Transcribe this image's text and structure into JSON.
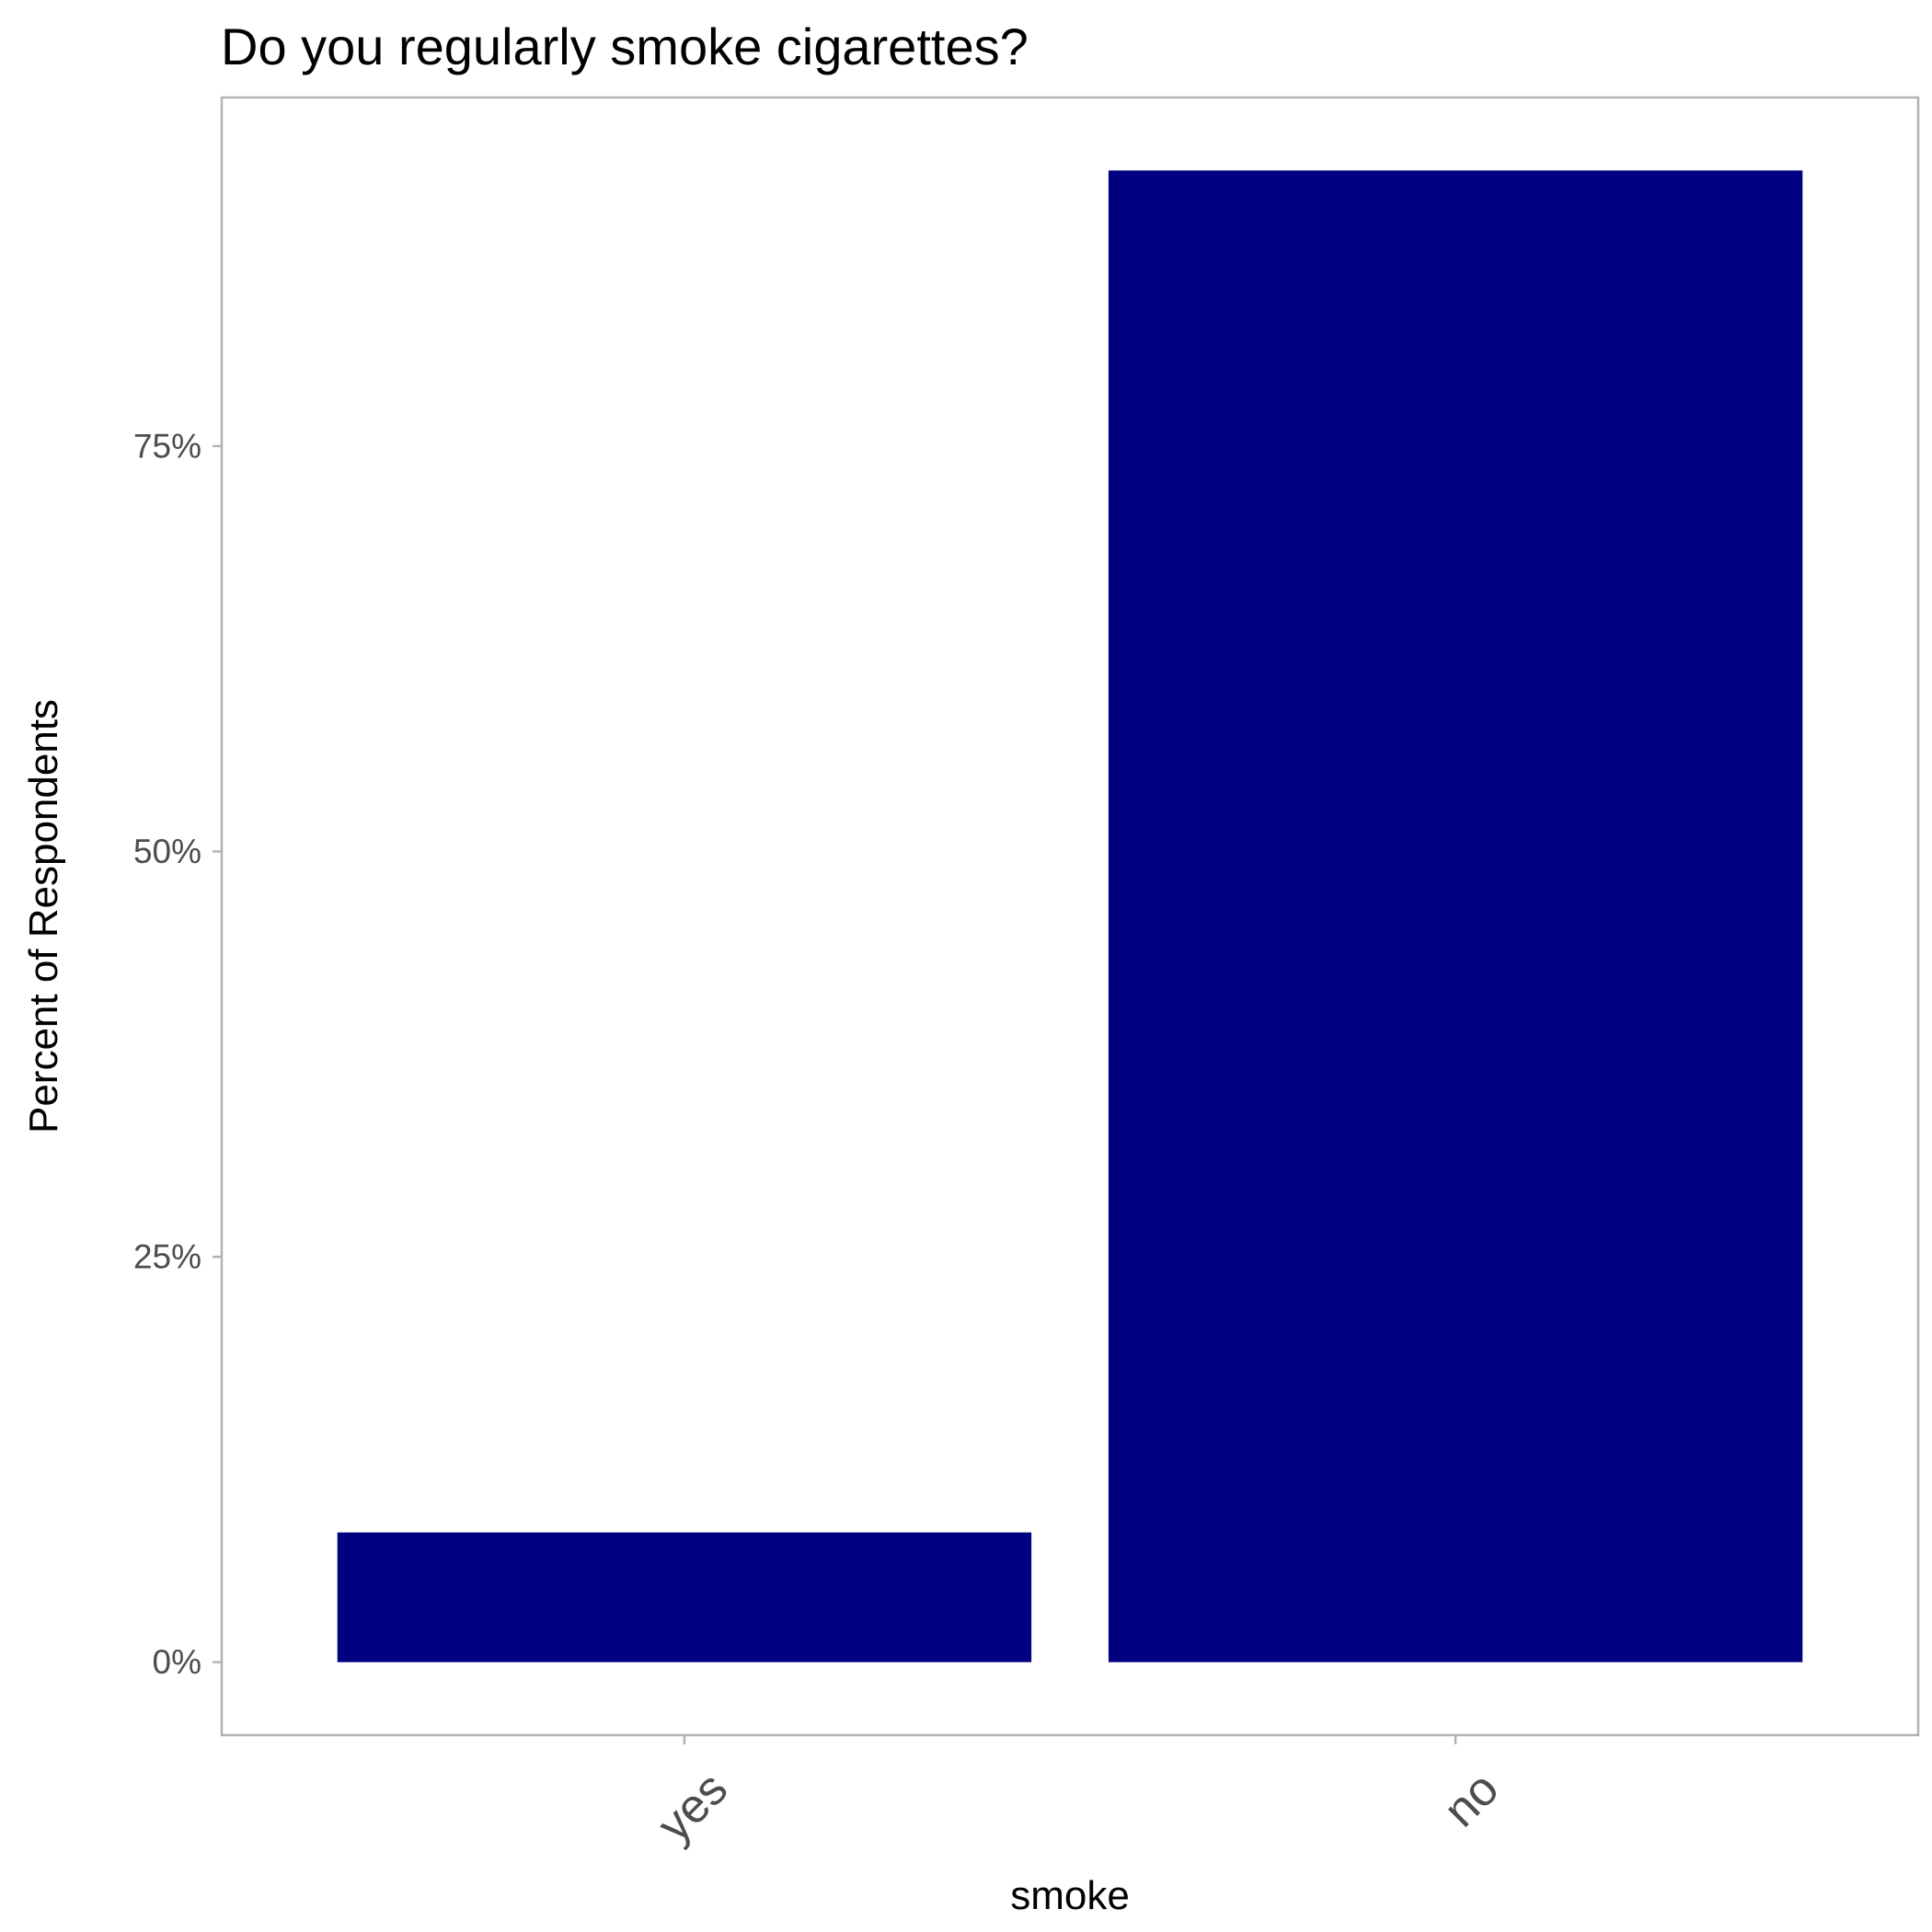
{
  "chart_data": {
    "type": "bar",
    "title": "Do you regularly smoke cigarettes?",
    "xlabel": "smoke",
    "ylabel": "Percent of Respondents",
    "categories": [
      "yes",
      "no"
    ],
    "values": [
      8,
      92
    ],
    "value_unit": "%",
    "ylim": [
      -4.5,
      96.5
    ],
    "yticks": [
      0,
      25,
      50,
      75
    ],
    "ytick_labels": [
      "0%",
      "25%",
      "50%",
      "75%"
    ],
    "bar_color": "#000080",
    "panel_border_color": "#b3b3b3",
    "grid": false,
    "legend": "none"
  }
}
